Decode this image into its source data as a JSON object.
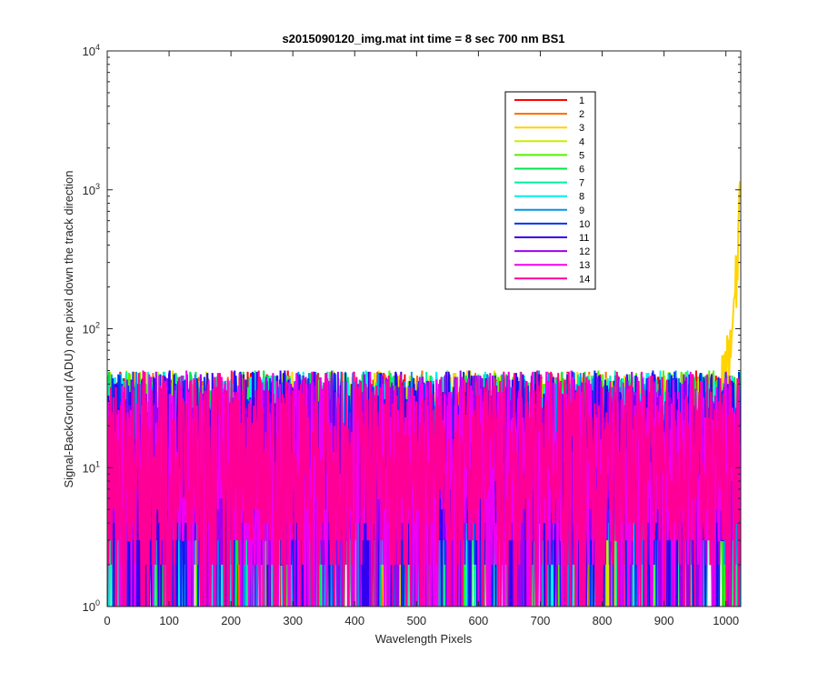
{
  "chart_data": {
    "type": "line",
    "title": "s2015090120_img.mat int time = 8 sec  700 nm BS1",
    "xlabel": "Wavelength Pixels",
    "ylabel": "Signal-BackGround (ADU) one pixel down the track direction",
    "xlim": [
      0,
      1024
    ],
    "ylim": [
      1,
      10000
    ],
    "yscale": "log",
    "grid": false,
    "legend_position": "top-right",
    "x_ticks": [
      "0",
      "100",
      "200",
      "300",
      "400",
      "500",
      "600",
      "700",
      "800",
      "900",
      "1000"
    ],
    "y_ticks": [
      {
        "base": "10",
        "exp": "0"
      },
      {
        "base": "10",
        "exp": "1"
      },
      {
        "base": "10",
        "exp": "2"
      },
      {
        "base": "10",
        "exp": "3"
      },
      {
        "base": "10",
        "exp": "4"
      }
    ],
    "x": {
      "start": 0,
      "end": 1024,
      "step": 1
    },
    "noise_range": [
      1,
      55
    ],
    "series": [
      {
        "name": "1",
        "color": "#ff0000",
        "typical_max": 50
      },
      {
        "name": "2",
        "color": "#ff6a00",
        "typical_max": 50
      },
      {
        "name": "3",
        "color": "#ffd400",
        "typical_max": 50,
        "tail": [
          {
            "x": 990,
            "y": 40
          },
          {
            "x": 1000,
            "y": 60
          },
          {
            "x": 1010,
            "y": 100
          },
          {
            "x": 1018,
            "y": 300
          },
          {
            "x": 1024,
            "y": 1650
          }
        ]
      },
      {
        "name": "4",
        "color": "#c8f000",
        "typical_max": 50
      },
      {
        "name": "5",
        "color": "#55f000",
        "typical_max": 50
      },
      {
        "name": "6",
        "color": "#00e64d",
        "typical_max": 50
      },
      {
        "name": "7",
        "color": "#00f0a0",
        "typical_max": 50
      },
      {
        "name": "8",
        "color": "#00f0f0",
        "typical_max": 50
      },
      {
        "name": "9",
        "color": "#0096e6",
        "typical_max": 50
      },
      {
        "name": "10",
        "color": "#0032f0",
        "typical_max": 50
      },
      {
        "name": "11",
        "color": "#3200f0",
        "typical_max": 50
      },
      {
        "name": "12",
        "color": "#a000f0",
        "typical_max": 50
      },
      {
        "name": "13",
        "color": "#f000f0",
        "typical_max": 50
      },
      {
        "name": "14",
        "color": "#ff0096",
        "typical_max": 50
      }
    ]
  }
}
